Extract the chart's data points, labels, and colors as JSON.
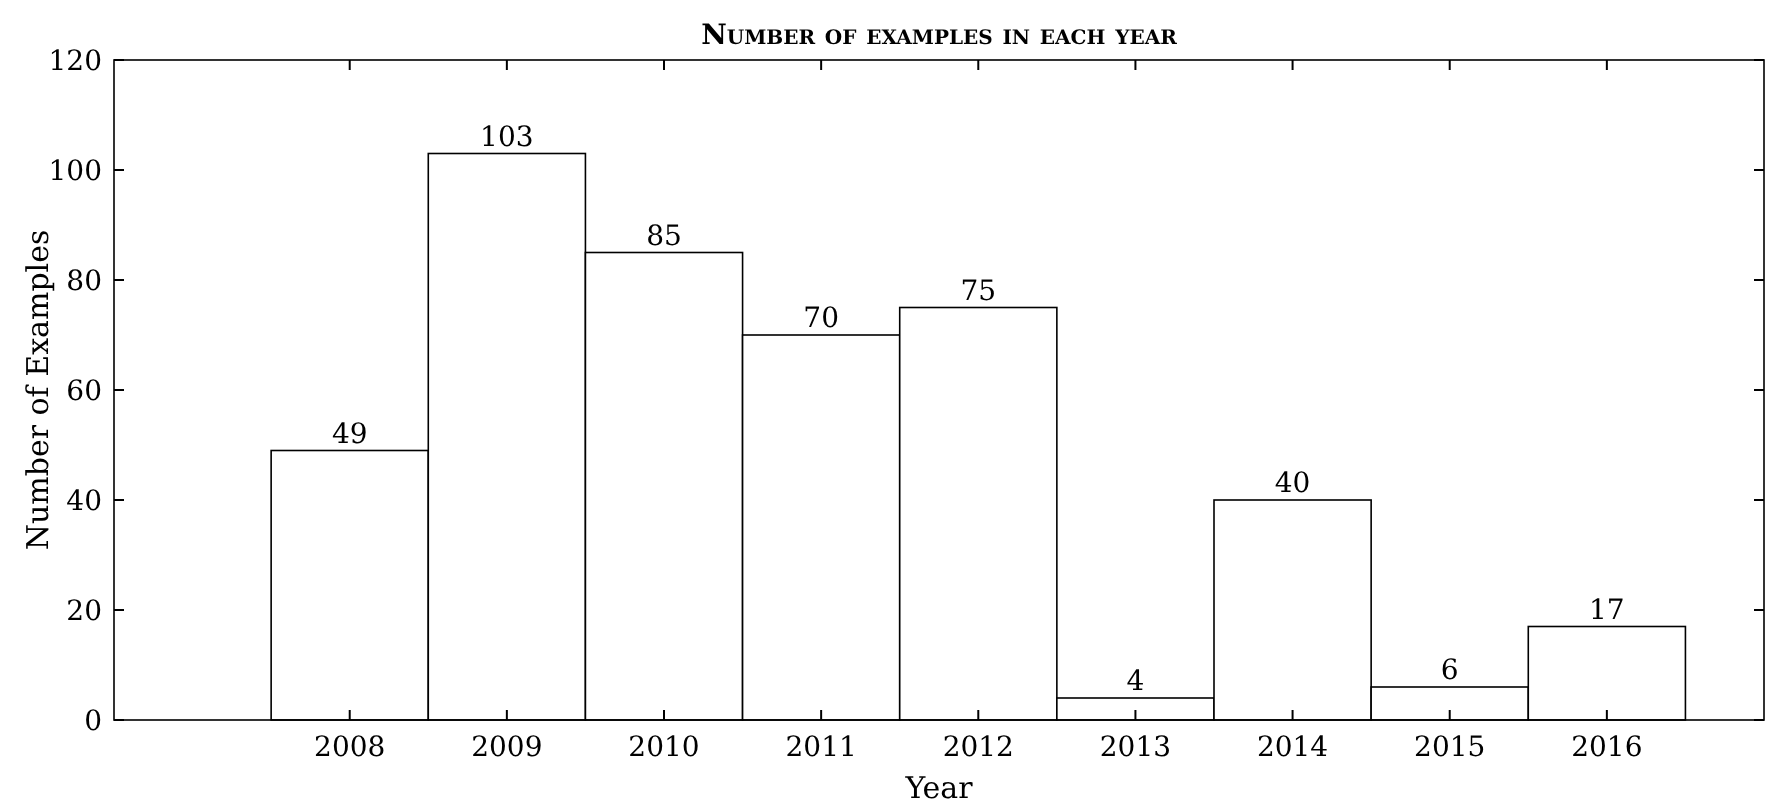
{
  "chart_data": {
    "type": "bar",
    "title": "Number of examples in each year",
    "xlabel": "Year",
    "ylabel": "Number of Examples",
    "x": [
      2008,
      2009,
      2010,
      2011,
      2012,
      2013,
      2014,
      2015,
      2016
    ],
    "values": [
      49,
      103,
      85,
      70,
      75,
      4,
      40,
      6,
      17
    ],
    "color": "#ffffff",
    "data_labels": true,
    "xlim": [
      2006.5,
      2017
    ],
    "xticks": [
      2008,
      2009,
      2010,
      2011,
      2012,
      2013,
      2014,
      2015,
      2016
    ],
    "ylim": [
      0,
      120
    ],
    "yticks": [
      0,
      20,
      40,
      60,
      80,
      100,
      120
    ],
    "grid": false
  }
}
